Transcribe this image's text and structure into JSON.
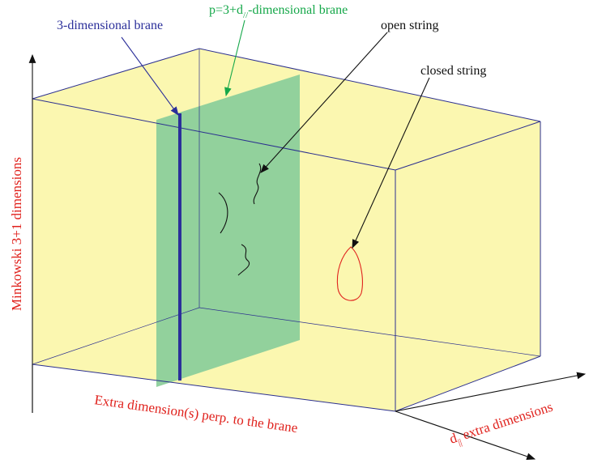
{
  "labels": {
    "three_dim_brane": "3-dimensional brane",
    "p_brane_prefix": "p=3+d",
    "p_brane_subscript": "//",
    "p_brane_suffix": "-dimensional brane",
    "open_string": "open string",
    "closed_string": "closed string",
    "minkowski": "Minkowski 3+1 dimensions",
    "extra_perp": "Extra dimension(s) perp. to the brane",
    "d_par_symbol": "d",
    "d_par_subscript": "||",
    "d_par_suffix": " extra dimensions"
  },
  "colors": {
    "box_face": "#fbf7b0",
    "box_edge": "#2b2f8f",
    "brane_green": "#8ccf9b",
    "brane_blue": "#2b2f9a",
    "label_red": "#e0221d",
    "label_green": "#16a84a",
    "closed_string": "#e0221d"
  }
}
